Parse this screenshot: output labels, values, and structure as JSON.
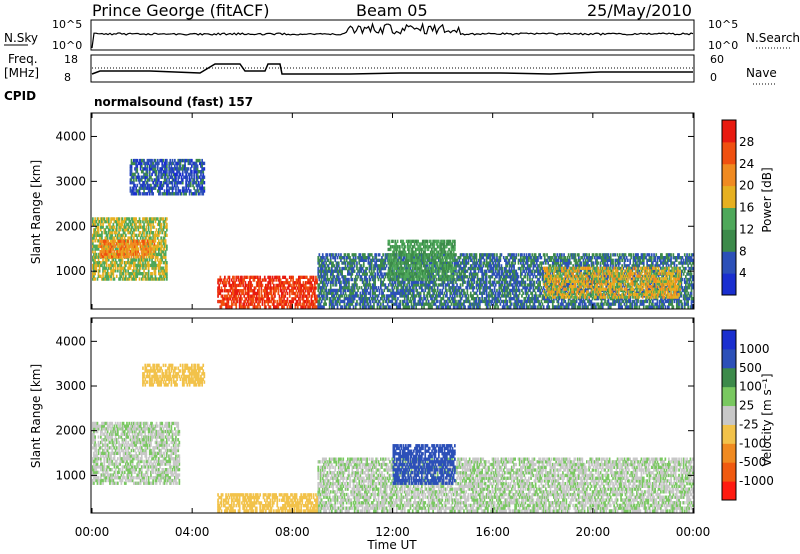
{
  "header": {
    "station": "Prince George (fitACF)",
    "beam": "Beam 05",
    "date": "25/May/2010"
  },
  "noise_panel": {
    "left_label": "N.Sky",
    "left_ticks": [
      "10^5",
      "10^0"
    ],
    "right_label": "N.Search",
    "right_ticks": [
      "10^5",
      "10^0"
    ]
  },
  "freq_panel": {
    "left_label_1": "Freq.",
    "left_label_2": "[MHz]",
    "left_ticks": [
      "18",
      "8"
    ],
    "right_label": "Nave",
    "right_ticks": [
      "60",
      "0"
    ]
  },
  "cpid": {
    "label": "CPID",
    "text": "normalsound (fast) 157"
  },
  "colors": {
    "power_scale": [
      "#1a2fcf",
      "#2c50b8",
      "#3c8a4a",
      "#4ea85a",
      "#e6b020",
      "#f08a20",
      "#f05010",
      "#e81a10"
    ],
    "velocity_scale": [
      "#ff1a10",
      "#f05a10",
      "#f08a20",
      "#f2c24a",
      "#c8c8c8",
      "#79c860",
      "#3c8a4a",
      "#2c50b8",
      "#1a2fcf"
    ]
  },
  "chart_data": [
    {
      "type": "heatmap",
      "title": "",
      "xlabel": "",
      "ylabel": "Slant Range [km]",
      "xlim": [
        "00:00",
        "24:00"
      ],
      "ylim": [
        180,
        4500
      ],
      "y_ticks": [
        1000,
        2000,
        3000,
        4000
      ],
      "colorbar_label": "Power [dB]",
      "colorbar_ticks": [
        4,
        8,
        12,
        16,
        20,
        24,
        28
      ],
      "regions": [
        {
          "t0": 0.0,
          "t1": 3.0,
          "r0": 800,
          "r1": 2200,
          "level": 16
        },
        {
          "t0": 0.3,
          "t1": 2.5,
          "r0": 1300,
          "r1": 1700,
          "level": 22
        },
        {
          "t0": 5.0,
          "t1": 9.0,
          "r0": 180,
          "r1": 900,
          "level": 28
        },
        {
          "t0": 9.0,
          "t1": 24.0,
          "r0": 180,
          "r1": 1400,
          "level": 8
        },
        {
          "t0": 18.0,
          "t1": 23.5,
          "r0": 400,
          "r1": 1100,
          "level": 18
        },
        {
          "t0": 11.8,
          "t1": 14.5,
          "r0": 800,
          "r1": 1700,
          "level": 12
        },
        {
          "t0": 1.5,
          "t1": 4.5,
          "r0": 2700,
          "r1": 3500,
          "level": 6
        }
      ]
    },
    {
      "type": "heatmap",
      "title": "",
      "xlabel": "Time UT",
      "ylabel": "Slant Range [km]",
      "xlim": [
        "00:00",
        "24:00"
      ],
      "x_ticks": [
        "00:00",
        "04:00",
        "08:00",
        "12:00",
        "16:00",
        "20:00",
        "00:00"
      ],
      "ylim": [
        180,
        4500
      ],
      "y_ticks": [
        1000,
        2000,
        3000,
        4000
      ],
      "colorbar_label": "Velocity [m s⁻¹]",
      "colorbar_ticks": [
        1000,
        500,
        100,
        25,
        -25,
        -100,
        -500,
        -1000
      ],
      "regions": [
        {
          "t0": 0.0,
          "t1": 3.5,
          "r0": 800,
          "r1": 2200,
          "level": 0
        },
        {
          "t0": 9.0,
          "t1": 24.0,
          "r0": 180,
          "r1": 1400,
          "level": 0
        },
        {
          "t0": 5.0,
          "t1": 9.0,
          "r0": 180,
          "r1": 600,
          "level": -80
        },
        {
          "t0": 12.0,
          "t1": 14.5,
          "r0": 800,
          "r1": 1700,
          "level": 300
        },
        {
          "t0": 2.0,
          "t1": 4.5,
          "r0": 3000,
          "r1": 3500,
          "level": -60
        }
      ]
    }
  ]
}
